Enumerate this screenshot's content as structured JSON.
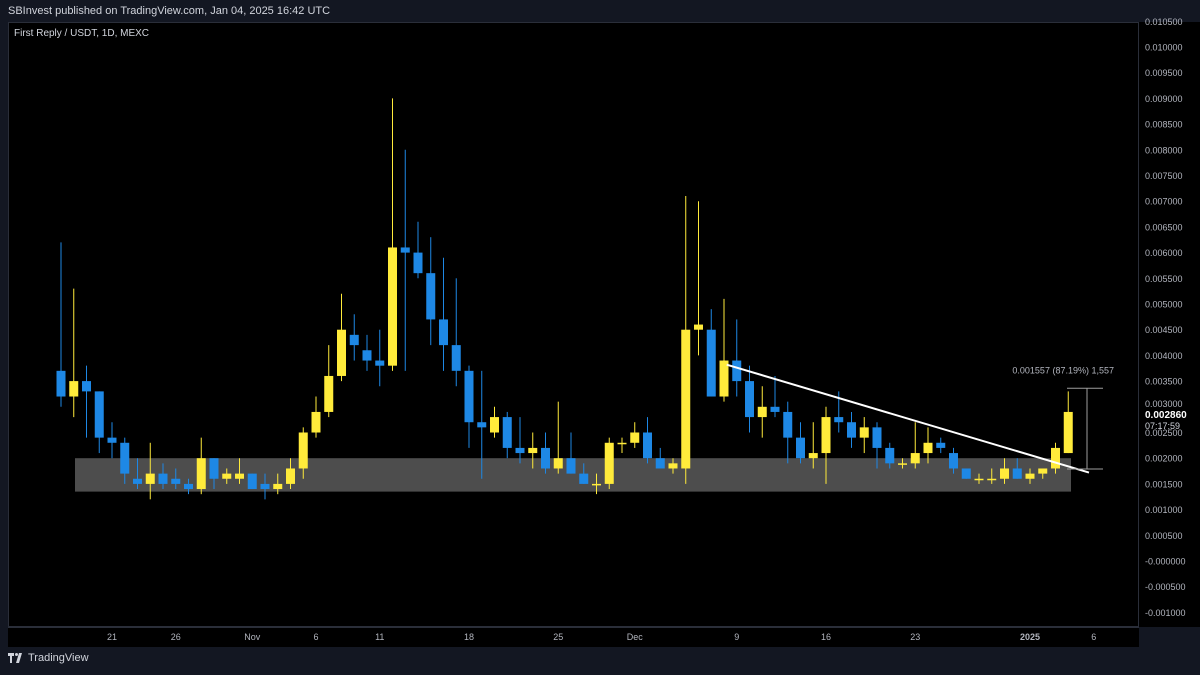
{
  "header": {
    "published": "SBInvest published on TradingView.com, Jan 04, 2025 16:42 UTC"
  },
  "symbol_label": "First Reply / USDT, 1D, MEXC",
  "footer": {
    "brand": "TradingView"
  },
  "colors": {
    "up": "#ffeb3b",
    "down": "#1e88e5",
    "background": "#000000",
    "support_zone": "#5a5a5a",
    "trendline": "#ffffff"
  },
  "chart_data": {
    "type": "candlestick",
    "title": "First Reply / USDT, 1D, MEXC",
    "ylim": [
      -0.0012,
      0.0106
    ],
    "grid": false,
    "price_ticks": [
      "0.010500",
      "0.010000",
      "0.009500",
      "0.009000",
      "0.008500",
      "0.008000",
      "0.007500",
      "0.007000",
      "0.006500",
      "0.006000",
      "0.005500",
      "0.005000",
      "0.004500",
      "0.004000",
      "0.003500",
      "0.003000",
      "0.002500",
      "0.002000",
      "0.001500",
      "0.001000",
      "0.000500",
      "-0.000000",
      "-0.000500",
      "-0.001000"
    ],
    "time_labels": [
      {
        "label": "21",
        "day": 4
      },
      {
        "label": "26",
        "day": 9
      },
      {
        "label": "Nov",
        "day": 15
      },
      {
        "label": "6",
        "day": 20
      },
      {
        "label": "11",
        "day": 25
      },
      {
        "label": "18",
        "day": 32
      },
      {
        "label": "25",
        "day": 39
      },
      {
        "label": "Dec",
        "day": 45
      },
      {
        "label": "9",
        "day": 53
      },
      {
        "label": "16",
        "day": 60
      },
      {
        "label": "23",
        "day": 67
      },
      {
        "label": "2025",
        "day": 76
      },
      {
        "label": "6",
        "day": 81
      }
    ],
    "candles": [
      [
        0.0037,
        0.0062,
        0.003,
        0.0032
      ],
      [
        0.0032,
        0.0053,
        0.0028,
        0.0035
      ],
      [
        0.0035,
        0.0038,
        0.0024,
        0.0033
      ],
      [
        0.0033,
        0.0033,
        0.0021,
        0.0024
      ],
      [
        0.0024,
        0.0027,
        0.002,
        0.0023
      ],
      [
        0.0023,
        0.0024,
        0.0015,
        0.0017
      ],
      [
        0.0016,
        0.002,
        0.0014,
        0.0015
      ],
      [
        0.0015,
        0.0023,
        0.0012,
        0.0017
      ],
      [
        0.0017,
        0.0019,
        0.0014,
        0.0015
      ],
      [
        0.0016,
        0.0018,
        0.0014,
        0.0015
      ],
      [
        0.0015,
        0.0016,
        0.0013,
        0.0014
      ],
      [
        0.0014,
        0.0024,
        0.0013,
        0.002
      ],
      [
        0.002,
        0.002,
        0.0014,
        0.0016
      ],
      [
        0.0016,
        0.0018,
        0.0015,
        0.0017
      ],
      [
        0.0016,
        0.002,
        0.0015,
        0.0017
      ],
      [
        0.0017,
        0.0017,
        0.0014,
        0.0014
      ],
      [
        0.0015,
        0.0017,
        0.0012,
        0.0014
      ],
      [
        0.0014,
        0.0017,
        0.0013,
        0.0015
      ],
      [
        0.0015,
        0.002,
        0.0014,
        0.0018
      ],
      [
        0.0018,
        0.0026,
        0.0016,
        0.0025
      ],
      [
        0.0025,
        0.0032,
        0.0024,
        0.0029
      ],
      [
        0.0029,
        0.0042,
        0.0028,
        0.0036
      ],
      [
        0.0036,
        0.0052,
        0.0035,
        0.0045
      ],
      [
        0.0044,
        0.0048,
        0.0039,
        0.0042
      ],
      [
        0.0041,
        0.0044,
        0.0037,
        0.0039
      ],
      [
        0.0039,
        0.0045,
        0.0034,
        0.0038
      ],
      [
        0.0038,
        0.009,
        0.0037,
        0.0061
      ],
      [
        0.0061,
        0.008,
        0.0037,
        0.006
      ],
      [
        0.006,
        0.0066,
        0.0055,
        0.0056
      ],
      [
        0.0056,
        0.0063,
        0.0042,
        0.0047
      ],
      [
        0.0047,
        0.0059,
        0.0037,
        0.0042
      ],
      [
        0.0042,
        0.0055,
        0.0034,
        0.0037
      ],
      [
        0.0037,
        0.0038,
        0.0022,
        0.0027
      ],
      [
        0.0027,
        0.0037,
        0.0016,
        0.0026
      ],
      [
        0.0025,
        0.003,
        0.0024,
        0.0028
      ],
      [
        0.0028,
        0.0029,
        0.002,
        0.0022
      ],
      [
        0.0022,
        0.0028,
        0.0019,
        0.0021
      ],
      [
        0.0021,
        0.0025,
        0.0018,
        0.0022
      ],
      [
        0.0022,
        0.0025,
        0.0017,
        0.0018
      ],
      [
        0.0018,
        0.0031,
        0.0017,
        0.002
      ],
      [
        0.002,
        0.0025,
        0.0017,
        0.0017
      ],
      [
        0.0017,
        0.0019,
        0.0015,
        0.0015
      ],
      [
        0.0015,
        0.0017,
        0.0013,
        0.0015
      ],
      [
        0.0015,
        0.0024,
        0.0014,
        0.0023
      ],
      [
        0.0023,
        0.0024,
        0.0021,
        0.0023
      ],
      [
        0.0023,
        0.0027,
        0.0022,
        0.0025
      ],
      [
        0.0025,
        0.0028,
        0.0019,
        0.002
      ],
      [
        0.002,
        0.0022,
        0.0018,
        0.0018
      ],
      [
        0.0018,
        0.002,
        0.0017,
        0.0019
      ],
      [
        0.0018,
        0.0071,
        0.0015,
        0.0045
      ],
      [
        0.0045,
        0.007,
        0.004,
        0.0046
      ],
      [
        0.0045,
        0.0049,
        0.0032,
        0.0032
      ],
      [
        0.0032,
        0.0051,
        0.0031,
        0.0039
      ],
      [
        0.0039,
        0.0047,
        0.0032,
        0.0035
      ],
      [
        0.0035,
        0.0038,
        0.0025,
        0.0028
      ],
      [
        0.0028,
        0.0034,
        0.0024,
        0.003
      ],
      [
        0.003,
        0.0036,
        0.0028,
        0.0029
      ],
      [
        0.0029,
        0.0031,
        0.0019,
        0.0024
      ],
      [
        0.0024,
        0.0027,
        0.0019,
        0.002
      ],
      [
        0.002,
        0.0027,
        0.0018,
        0.0021
      ],
      [
        0.0021,
        0.003,
        0.0015,
        0.0028
      ],
      [
        0.0028,
        0.0033,
        0.0025,
        0.0027
      ],
      [
        0.0027,
        0.0029,
        0.0022,
        0.0024
      ],
      [
        0.0024,
        0.0028,
        0.0021,
        0.0026
      ],
      [
        0.0026,
        0.0027,
        0.0018,
        0.0022
      ],
      [
        0.0022,
        0.0023,
        0.0018,
        0.0019
      ],
      [
        0.0019,
        0.002,
        0.0018,
        0.0019
      ],
      [
        0.0019,
        0.0027,
        0.0018,
        0.0021
      ],
      [
        0.0021,
        0.0026,
        0.0019,
        0.0023
      ],
      [
        0.0023,
        0.0024,
        0.0021,
        0.0022
      ],
      [
        0.0021,
        0.0022,
        0.0017,
        0.0018
      ],
      [
        0.0018,
        0.0018,
        0.0016,
        0.0016
      ],
      [
        0.0016,
        0.0017,
        0.0015,
        0.0016
      ],
      [
        0.0016,
        0.0018,
        0.0015,
        0.0016
      ],
      [
        0.0016,
        0.002,
        0.0015,
        0.0018
      ],
      [
        0.0018,
        0.002,
        0.0016,
        0.0016
      ],
      [
        0.0016,
        0.0018,
        0.0015,
        0.0017
      ],
      [
        0.0017,
        0.0018,
        0.0016,
        0.0018
      ],
      [
        0.0018,
        0.0023,
        0.0017,
        0.0022
      ],
      [
        0.0021,
        0.0033,
        0.0021,
        0.0029
      ]
    ],
    "support_zone": {
      "from": 0.00135,
      "to": 0.002
    },
    "trendline": {
      "start": {
        "day": 53,
        "price": 0.00382
      },
      "end": {
        "day": 80,
        "price": 0.00172
      }
    },
    "measure": {
      "label": "0.001557 (87.19%) 1,557",
      "low": 0.00179,
      "high": 0.00336,
      "day": 80
    },
    "last_price": {
      "value": "0.002860",
      "countdown": "07:17:59",
      "price": 0.00286
    },
    "hidden_tick_labels": [
      "0.003000",
      "0.002500"
    ]
  }
}
